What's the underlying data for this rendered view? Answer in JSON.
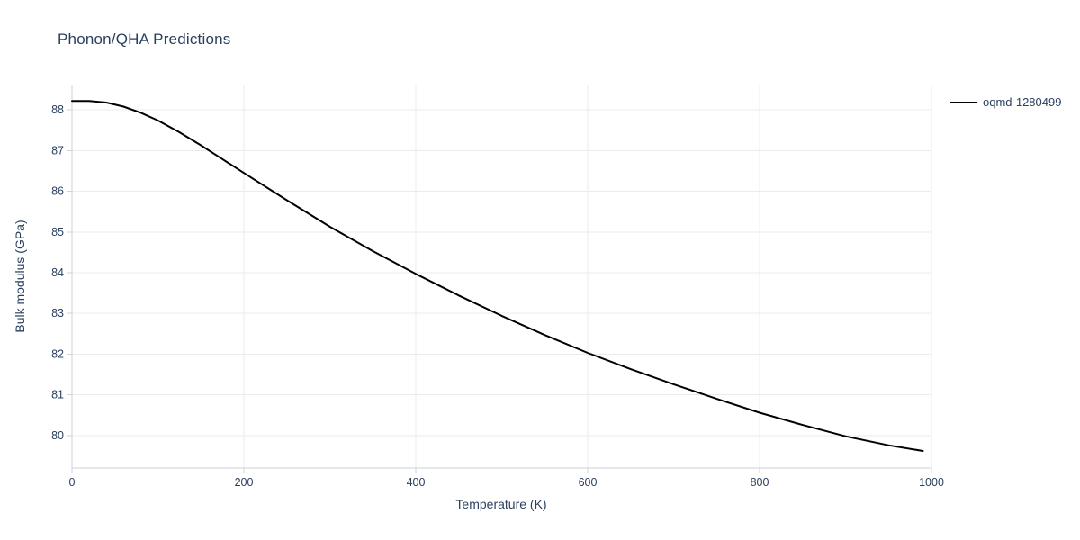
{
  "chart_data": {
    "type": "line",
    "title": "Phonon/QHA Predictions",
    "xlabel": "Temperature (K)",
    "ylabel": "Bulk modulus (GPa)",
    "xlim": [
      0,
      1000
    ],
    "ylim": [
      79.2,
      88.6
    ],
    "xticks": [
      0,
      200,
      400,
      600,
      800,
      1000
    ],
    "yticks": [
      80,
      81,
      82,
      83,
      84,
      85,
      86,
      87,
      88
    ],
    "grid": true,
    "legend_position": "top-right",
    "colors": {
      "text": "#2a3f5f",
      "grid": "#e9ebef",
      "axis": "#ced3d9",
      "background": "#ffffff"
    },
    "series": [
      {
        "name": "oqmd-1280499",
        "color": "#000000",
        "x": [
          0,
          20,
          40,
          60,
          80,
          100,
          125,
          150,
          175,
          200,
          250,
          300,
          350,
          400,
          450,
          500,
          550,
          600,
          650,
          700,
          750,
          800,
          850,
          900,
          950,
          990
        ],
        "y": [
          88.22,
          88.22,
          88.18,
          88.08,
          87.93,
          87.74,
          87.45,
          87.13,
          86.79,
          86.45,
          85.78,
          85.13,
          84.53,
          83.97,
          83.44,
          82.94,
          82.47,
          82.03,
          81.63,
          81.26,
          80.9,
          80.56,
          80.26,
          79.98,
          79.76,
          79.62
        ]
      }
    ]
  }
}
